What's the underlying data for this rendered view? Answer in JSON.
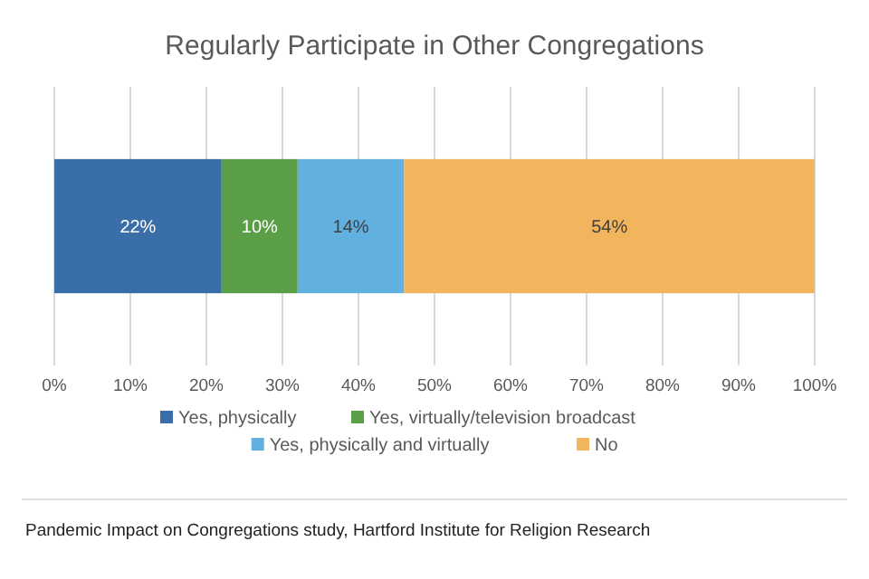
{
  "chart_data": {
    "type": "bar",
    "title": "Regularly Participate in Other Congregations",
    "orientation": "horizontal",
    "stacked": true,
    "categories": [
      null
    ],
    "series": [
      {
        "name": "Yes, physically",
        "color": "#3a6ea8",
        "values": [
          22
        ],
        "value_labels": [
          "22%"
        ]
      },
      {
        "name": "Yes, virtually/television broadcast",
        "color": "#5a9e48",
        "values": [
          10
        ],
        "value_labels": [
          "10%"
        ]
      },
      {
        "name": "Yes, physically and virtually",
        "color": "#62b0e0",
        "values": [
          14
        ],
        "value_labels": [
          "14%"
        ]
      },
      {
        "name": "No",
        "color": "#f2b55e",
        "values": [
          54
        ],
        "value_labels": [
          "54%"
        ]
      }
    ],
    "xlim": [
      0,
      100
    ],
    "xticks": [
      {
        "value": 0,
        "label": "0%"
      },
      {
        "value": 10,
        "label": "10%"
      },
      {
        "value": 20,
        "label": "20%"
      },
      {
        "value": 30,
        "label": "30%"
      },
      {
        "value": 40,
        "label": "40%"
      },
      {
        "value": 50,
        "label": "50%"
      },
      {
        "value": 60,
        "label": "60%"
      },
      {
        "value": 70,
        "label": "70%"
      },
      {
        "value": 80,
        "label": "80%"
      },
      {
        "value": 90,
        "label": "90%"
      },
      {
        "value": 100,
        "label": "100%"
      }
    ],
    "grid": "x",
    "legend": "bottom",
    "annotations": [
      "Pandemic Impact on Congregations study, Hartford Institute for Religion Research"
    ]
  }
}
